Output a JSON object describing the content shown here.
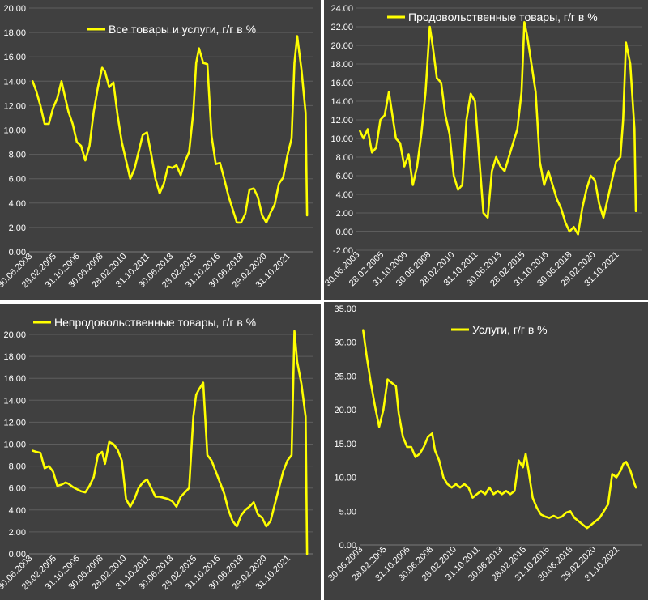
{
  "colors": {
    "background": "#404040",
    "line": "#ffff00",
    "text": "#ffffff",
    "grid": "#5e5e5e",
    "separator": "#ffffff"
  },
  "chart_data": [
    {
      "type": "line",
      "title": "",
      "grid": true,
      "legend_placement": "top-center",
      "series": [
        {
          "name": "Все товары и услуги, г/г в %"
        }
      ],
      "ylim": [
        0,
        20
      ],
      "y_ticks": [
        "0.00",
        "2.00",
        "4.00",
        "6.00",
        "8.00",
        "10.00",
        "12.00",
        "14.00",
        "16.00",
        "18.00",
        "20.00"
      ],
      "x_ticks": [
        "30.06.2003",
        "28.02.2005",
        "31.10.2006",
        "30.06.2008",
        "28.02.2010",
        "31.10.2011",
        "30.06.2013",
        "28.02.2015",
        "31.10.2016",
        "30.06.2018",
        "29.02.2020",
        "31.10.2021"
      ],
      "x": [
        2003.45,
        2003.7,
        2004.0,
        2004.3,
        2004.6,
        2004.9,
        2005.2,
        2005.5,
        2005.8,
        2006.0,
        2006.3,
        2006.6,
        2006.9,
        2007.2,
        2007.5,
        2007.8,
        2008.1,
        2008.4,
        2008.6,
        2008.9,
        2009.2,
        2009.5,
        2009.8,
        2010.1,
        2010.4,
        2010.7,
        2011.0,
        2011.3,
        2011.6,
        2011.9,
        2012.2,
        2012.5,
        2012.8,
        2013.1,
        2013.4,
        2013.7,
        2014.0,
        2014.3,
        2014.6,
        2014.9,
        2015.1,
        2015.3,
        2015.6,
        2015.9,
        2016.2,
        2016.5,
        2016.8,
        2017.1,
        2017.4,
        2017.7,
        2018.0,
        2018.3,
        2018.6,
        2018.9,
        2019.2,
        2019.5,
        2019.8,
        2020.1,
        2020.4,
        2020.7,
        2021.0,
        2021.3,
        2021.6,
        2021.9,
        2022.1,
        2022.3,
        2022.6,
        2022.9,
        2023.0
      ],
      "values": [
        14.0,
        13.2,
        12.0,
        10.5,
        10.5,
        11.8,
        12.6,
        14.0,
        12.5,
        11.5,
        10.5,
        9.0,
        8.7,
        7.5,
        8.7,
        11.5,
        13.5,
        15.1,
        14.8,
        13.5,
        13.9,
        11.2,
        9.0,
        7.5,
        6.0,
        6.8,
        8.2,
        9.6,
        9.8,
        8.0,
        6.0,
        4.8,
        5.6,
        7.0,
        6.9,
        7.1,
        6.3,
        7.4,
        8.2,
        11.5,
        15.5,
        16.7,
        15.5,
        15.4,
        9.5,
        7.2,
        7.3,
        6.0,
        4.6,
        3.5,
        2.4,
        2.4,
        3.1,
        5.1,
        5.2,
        4.5,
        3.0,
        2.4,
        3.2,
        3.9,
        5.6,
        6.1,
        7.9,
        9.3,
        15.5,
        17.7,
        15.0,
        11.4,
        3.0
      ]
    },
    {
      "type": "line",
      "title": "",
      "grid": true,
      "legend_placement": "top-center",
      "series": [
        {
          "name": "Продовольственные товары, г/г в %"
        }
      ],
      "ylim": [
        -2,
        24
      ],
      "y_ticks": [
        "-2.00",
        "0.00",
        "2.00",
        "4.00",
        "6.00",
        "8.00",
        "10.00",
        "12.00",
        "14.00",
        "16.00",
        "18.00",
        "20.00",
        "22.00",
        "24.00"
      ],
      "x_ticks": [
        "30.06.2003",
        "28.02.2005",
        "31.10.2006",
        "30.06.2008",
        "28.02.2010",
        "31.10.2011",
        "30.06.2013",
        "28.02.2015",
        "31.10.2016",
        "30.06.2018",
        "29.02.2020",
        "31.10.2021"
      ],
      "x": [
        2003.45,
        2003.7,
        2004.0,
        2004.3,
        2004.6,
        2004.9,
        2005.2,
        2005.5,
        2005.8,
        2006.0,
        2006.3,
        2006.6,
        2006.9,
        2007.2,
        2007.5,
        2007.8,
        2008.1,
        2008.4,
        2008.6,
        2008.9,
        2009.2,
        2009.5,
        2009.8,
        2010.1,
        2010.4,
        2010.7,
        2011.0,
        2011.3,
        2011.6,
        2011.9,
        2012.2,
        2012.5,
        2012.8,
        2013.1,
        2013.4,
        2013.7,
        2014.0,
        2014.3,
        2014.6,
        2014.9,
        2015.1,
        2015.3,
        2015.6,
        2015.9,
        2016.2,
        2016.5,
        2016.8,
        2017.1,
        2017.4,
        2017.7,
        2018.0,
        2018.3,
        2018.6,
        2018.9,
        2019.2,
        2019.5,
        2019.8,
        2020.1,
        2020.4,
        2020.7,
        2021.0,
        2021.3,
        2021.6,
        2021.9,
        2022.1,
        2022.3,
        2022.6,
        2022.9,
        2023.0
      ],
      "values": [
        10.8,
        10.0,
        11.0,
        8.5,
        9.0,
        12.0,
        12.5,
        15.0,
        12.0,
        10.0,
        9.5,
        7.0,
        8.3,
        5.0,
        7.0,
        10.5,
        15.0,
        22.0,
        20.0,
        16.5,
        16.0,
        12.5,
        10.5,
        6.0,
        4.5,
        5.0,
        12.0,
        14.8,
        14.0,
        8.0,
        2.0,
        1.5,
        6.5,
        8.0,
        7.0,
        6.5,
        8.0,
        9.5,
        11.0,
        15.0,
        22.5,
        21.0,
        18.0,
        15.0,
        7.5,
        5.0,
        6.5,
        5.0,
        3.5,
        2.5,
        1.0,
        0.0,
        0.5,
        -0.3,
        2.5,
        4.5,
        6.0,
        5.5,
        3.0,
        1.5,
        3.5,
        5.5,
        7.5,
        8.0,
        12.0,
        20.3,
        18.0,
        11.0,
        2.2
      ]
    },
    {
      "type": "line",
      "title": "",
      "grid": true,
      "legend_placement": "top-center",
      "series": [
        {
          "name": "Непродовольственные товары, г/г в %"
        }
      ],
      "ylim": [
        0,
        20
      ],
      "y_ticks": [
        "0.00",
        "2.00",
        "4.00",
        "6.00",
        "8.00",
        "10.00",
        "12.00",
        "14.00",
        "16.00",
        "18.00",
        "20.00"
      ],
      "x_ticks": [
        "30.06.2003",
        "28.02.2005",
        "31.10.2006",
        "30.06.2008",
        "28.02.2010",
        "31.10.2011",
        "30.06.2013",
        "28.02.2015",
        "31.10.2016",
        "30.06.2018",
        "29.02.2020",
        "31.10.2021"
      ],
      "x": [
        2003.45,
        2003.7,
        2004.0,
        2004.3,
        2004.6,
        2004.9,
        2005.2,
        2005.5,
        2005.8,
        2006.0,
        2006.3,
        2006.6,
        2006.9,
        2007.2,
        2007.5,
        2007.8,
        2008.1,
        2008.4,
        2008.6,
        2008.9,
        2009.2,
        2009.5,
        2009.8,
        2010.1,
        2010.4,
        2010.7,
        2011.0,
        2011.3,
        2011.6,
        2011.9,
        2012.2,
        2012.5,
        2012.8,
        2013.1,
        2013.4,
        2013.7,
        2014.0,
        2014.3,
        2014.6,
        2014.9,
        2015.1,
        2015.3,
        2015.6,
        2015.9,
        2016.2,
        2016.5,
        2016.8,
        2017.1,
        2017.4,
        2017.7,
        2018.0,
        2018.3,
        2018.6,
        2018.9,
        2019.2,
        2019.5,
        2019.8,
        2020.1,
        2020.4,
        2020.7,
        2021.0,
        2021.3,
        2021.6,
        2021.9,
        2022.1,
        2022.3,
        2022.6,
        2022.9,
        2023.0
      ],
      "values": [
        9.4,
        9.3,
        9.2,
        7.8,
        8.0,
        7.5,
        6.2,
        6.3,
        6.5,
        6.4,
        6.1,
        5.9,
        5.7,
        5.6,
        6.2,
        7.0,
        9.0,
        9.3,
        8.2,
        10.2,
        10.0,
        9.5,
        8.5,
        5.0,
        4.3,
        5.0,
        6.0,
        6.5,
        6.8,
        6.0,
        5.2,
        5.2,
        5.1,
        5.0,
        4.8,
        4.3,
        5.2,
        5.6,
        6.0,
        12.5,
        14.5,
        15.0,
        15.6,
        9.0,
        8.5,
        7.5,
        6.5,
        5.5,
        4.0,
        3.0,
        2.5,
        3.5,
        4.0,
        4.3,
        4.7,
        3.6,
        3.3,
        2.5,
        3.0,
        4.5,
        6.0,
        7.5,
        8.5,
        9.0,
        20.3,
        17.5,
        15.5,
        12.5,
        0.0
      ]
    },
    {
      "type": "line",
      "title": "",
      "grid": false,
      "legend_placement": "top-center",
      "series": [
        {
          "name": "Услуги, г/г в %"
        }
      ],
      "ylim": [
        0,
        35
      ],
      "y_ticks": [
        "0.00",
        "5.00",
        "10.00",
        "15.00",
        "20.00",
        "25.00",
        "30.00",
        "35.00"
      ],
      "x_ticks": [
        "30.06.2003",
        "28.02.2005",
        "31.10.2006",
        "30.06.2008",
        "28.02.2010",
        "31.10.2011",
        "30.06.2013",
        "28.02.2015",
        "31.10.2016",
        "30.06.2018",
        "29.02.2020",
        "31.10.2021"
      ],
      "x": [
        2003.45,
        2003.7,
        2004.0,
        2004.3,
        2004.6,
        2004.9,
        2005.2,
        2005.5,
        2005.8,
        2006.0,
        2006.3,
        2006.6,
        2006.9,
        2007.2,
        2007.5,
        2007.8,
        2008.1,
        2008.4,
        2008.6,
        2008.9,
        2009.2,
        2009.5,
        2009.8,
        2010.1,
        2010.4,
        2010.7,
        2011.0,
        2011.3,
        2011.6,
        2011.9,
        2012.2,
        2012.5,
        2012.8,
        2013.1,
        2013.4,
        2013.7,
        2014.0,
        2014.3,
        2014.6,
        2014.9,
        2015.1,
        2015.3,
        2015.6,
        2015.9,
        2016.2,
        2016.5,
        2016.8,
        2017.1,
        2017.4,
        2017.7,
        2018.0,
        2018.3,
        2018.6,
        2018.9,
        2019.2,
        2019.5,
        2019.8,
        2020.1,
        2020.4,
        2020.7,
        2021.0,
        2021.3,
        2021.6,
        2021.9,
        2022.1,
        2022.3,
        2022.6,
        2022.9,
        2023.0
      ],
      "values": [
        31.8,
        28.0,
        24.0,
        20.5,
        17.5,
        20.0,
        24.5,
        24.0,
        23.5,
        19.5,
        16.0,
        14.5,
        14.5,
        13.0,
        13.5,
        14.5,
        16.0,
        16.5,
        14.0,
        12.5,
        10.0,
        9.0,
        8.5,
        9.0,
        8.5,
        9.0,
        8.5,
        7.0,
        7.5,
        8.0,
        7.5,
        8.5,
        7.5,
        8.0,
        7.5,
        8.0,
        7.5,
        8.0,
        12.5,
        11.5,
        13.5,
        11.0,
        7.0,
        5.5,
        4.5,
        4.2,
        4.0,
        4.3,
        4.0,
        4.2,
        4.8,
        5.0,
        4.0,
        3.5,
        3.0,
        2.5,
        3.0,
        3.5,
        4.0,
        5.0,
        6.0,
        10.5,
        10.0,
        11.0,
        12.0,
        12.3,
        11.0,
        9.0,
        8.5
      ]
    }
  ]
}
